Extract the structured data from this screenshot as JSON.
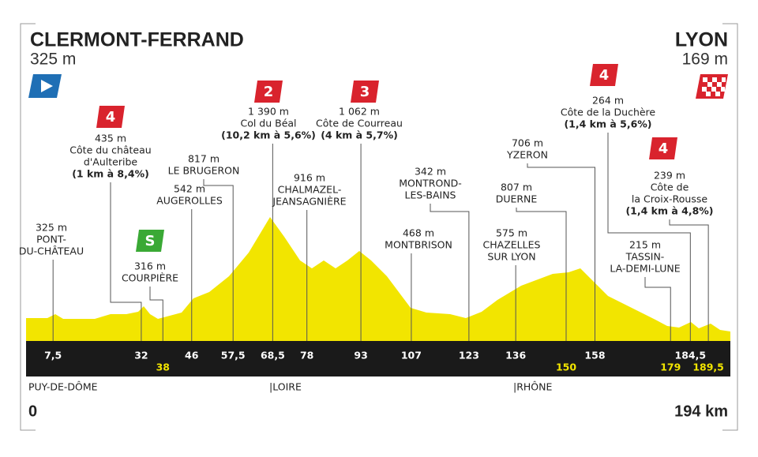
{
  "start": {
    "name": "CLERMONT-FERRAND",
    "altitude": "325 m"
  },
  "finish": {
    "name": "LYON",
    "altitude": "169 m"
  },
  "waypoints": [
    {
      "km": {
        "value": 7.5,
        "label": "7,5"
      },
      "altitude": "325 m",
      "name": [
        "PONT-",
        "DU-CHÂTEAU"
      ]
    },
    {
      "km": {
        "value": 32,
        "label": "32"
      },
      "category": "4",
      "altitude": "435 m",
      "name": [
        "Côte du château",
        "d'Aulteribe"
      ],
      "detail": "(1 km à 8,4%)"
    },
    {
      "km": {
        "value": 38,
        "label": "38"
      },
      "sprint": "S",
      "altitude": "316 m",
      "name": [
        "COURPIÈRE"
      ]
    },
    {
      "km": {
        "value": 46,
        "label": "46"
      },
      "altitude": "542 m",
      "name": [
        "AUGEROLLES"
      ]
    },
    {
      "km": {
        "value": 57.5,
        "label": "57,5"
      },
      "altitude": "817 m",
      "name": [
        "LE BRUGERON"
      ]
    },
    {
      "km": {
        "value": 68.5,
        "label": "68,5"
      },
      "category": "2",
      "altitude": "1 390 m",
      "name": [
        "Col du Béal"
      ],
      "detail": "(10,2 km à 5,6%)"
    },
    {
      "km": {
        "value": 78,
        "label": "78"
      },
      "altitude": "916 m",
      "name": [
        "CHALMAZEL-",
        "JEANSAGNIÈRE"
      ]
    },
    {
      "km": {
        "value": 93,
        "label": "93"
      },
      "category": "3",
      "altitude": "1 062 m",
      "name": [
        "Côte de Courreau"
      ],
      "detail": "(4 km à 5,7%)"
    },
    {
      "km": {
        "value": 107,
        "label": "107"
      },
      "altitude": "468 m",
      "name": [
        "MONTBRISON"
      ]
    },
    {
      "km": {
        "value": 123,
        "label": "123"
      },
      "altitude": "342 m",
      "name": [
        "MONTROND-",
        "LES-BAINS"
      ]
    },
    {
      "km": {
        "value": 136,
        "label": "136"
      },
      "altitude": "575 m",
      "name": [
        "CHAZELLES",
        "SUR LYON"
      ]
    },
    {
      "km": {
        "value": 150,
        "label": "150"
      },
      "altitude": "807 m",
      "name": [
        "DUERNE"
      ]
    },
    {
      "km": {
        "value": 158,
        "label": "158"
      },
      "altitude": "706 m",
      "name": [
        "YZERON"
      ]
    },
    {
      "km": {
        "value": 179,
        "label": "179"
      },
      "altitude": "215 m",
      "name": [
        "TASSIN-",
        "LA-DEMI-LUNE"
      ]
    },
    {
      "km": {
        "value": 184.5,
        "label": "184,5"
      },
      "category": "4",
      "altitude": "264 m",
      "name": [
        "Côte de la Duchère"
      ],
      "detail": "(1,4 km à 5,6%)"
    },
    {
      "km": {
        "value": 189.5,
        "label": "189,5"
      },
      "category": "4",
      "altitude": "239 m",
      "name": [
        "Côte de",
        "la Croix-Rousse"
      ],
      "detail": "(1,4 km à 4,8%)"
    }
  ],
  "regions": [
    "PUY-DE-DÔME",
    "|LOIRE",
    "|RHÔNE"
  ],
  "distance": {
    "start": "0",
    "end": "194 km"
  }
}
